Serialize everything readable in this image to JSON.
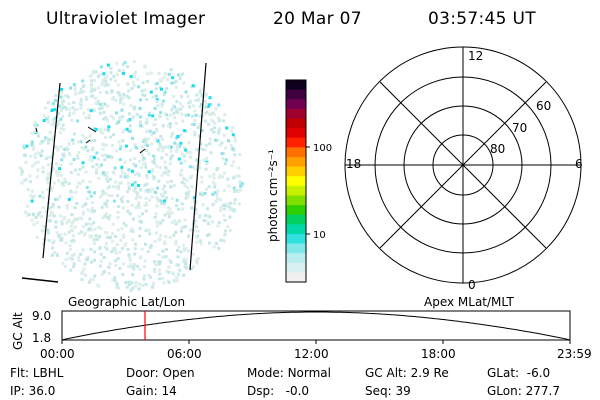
{
  "header": {
    "instrument": "Ultraviolet Imager",
    "date": "20 Mar 07",
    "time": "03:57:45 UT"
  },
  "colorbar": {
    "label": "photon cm⁻²s⁻¹",
    "ticks": [
      "100",
      "10"
    ],
    "colors": [
      "#f0f0f0",
      "#d8f0f0",
      "#b8eeee",
      "#80e8e8",
      "#30e0e0",
      "#00d8a8",
      "#00d060",
      "#30d000",
      "#80e000",
      "#c8f000",
      "#ffff00",
      "#ffd000",
      "#ffa000",
      "#ff7000",
      "#ff2000",
      "#e00000",
      "#c00000",
      "#a00030",
      "#700050",
      "#400040",
      "#100020"
    ]
  },
  "polar_plot": {
    "mlt_labels": {
      "top": "12",
      "right": "6",
      "bottom": "0",
      "left": "18"
    },
    "lat_labels": [
      "60",
      "70",
      "80"
    ]
  },
  "map_labels": {
    "left": "Geographic Lat/Lon",
    "right": "Apex  MLat/MLT"
  },
  "altitude_strip": {
    "ylabel": "GC Alt",
    "ytick_top": "9.0",
    "ytick_bottom": "1.8",
    "xticks": [
      "00:00",
      "06:00",
      "12:00",
      "18:00",
      "23:59"
    ],
    "marker_color": "#ff0000"
  },
  "footer": {
    "row1": [
      {
        "label": "Flt:",
        "value": "LBHL"
      },
      {
        "label": "Door:",
        "value": "Open"
      },
      {
        "label": "Mode:",
        "value": "Normal"
      },
      {
        "label": "GC Alt:",
        "value": "2.9 Re"
      },
      {
        "label": "GLat:",
        "value": "-6.0"
      }
    ],
    "row2": [
      {
        "label": "IP:",
        "value": "36.0"
      },
      {
        "label": "Gain:",
        "value": "14"
      },
      {
        "label": "Dsp:",
        "value": "-0.0"
      },
      {
        "label": "Seq:",
        "value": "39"
      },
      {
        "label": "GLon:",
        "value": "277.7"
      }
    ]
  }
}
